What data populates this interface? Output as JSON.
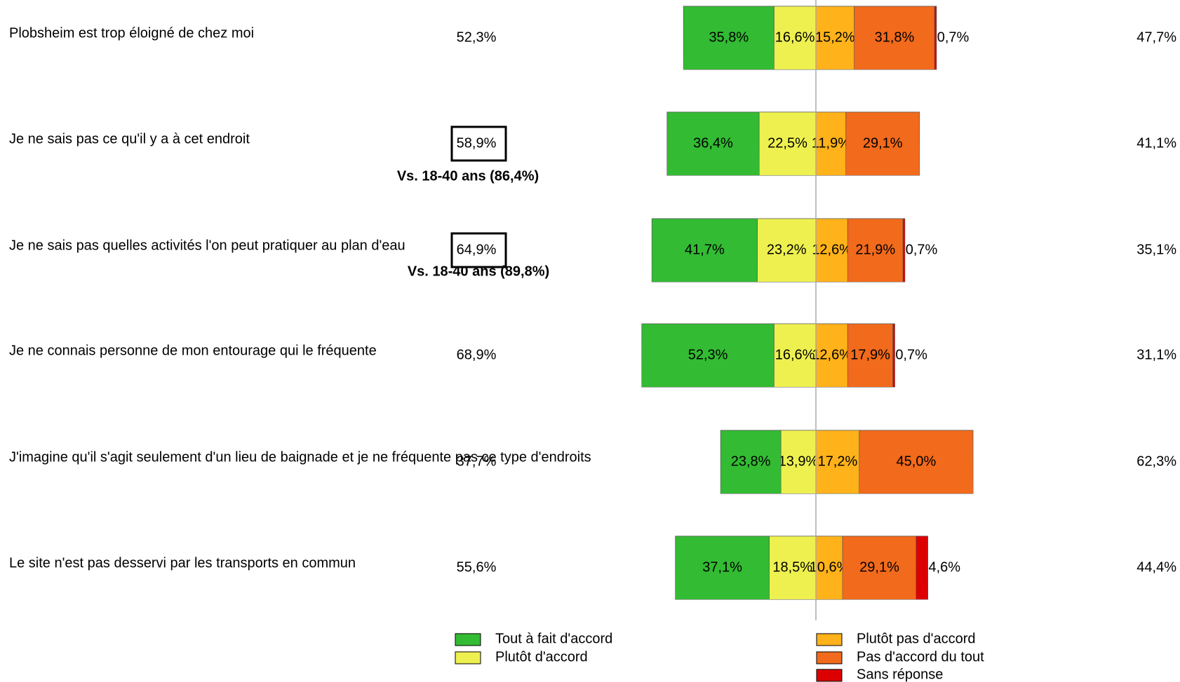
{
  "chart_data": {
    "type": "diverging-bar",
    "categories": [
      "Plobsheim est trop éloigné de chez moi",
      "Je ne sais pas ce qu'il y a à cet endroit",
      "Je ne sais pas quelles activités l'on peut pratiquer au plan d'eau",
      "Je ne connais personne de mon entourage qui le fréquente",
      "J'imagine qu'il s'agit seulement d'un lieu de baignade et je ne fréquente pas ce type d'endroits",
      "Le site n'est pas desservi par les transports en commun"
    ],
    "agree_totals": {
      "values": [
        52.3,
        58.9,
        64.9,
        68.9,
        37.7,
        55.6
      ],
      "value_labels": [
        "52,3%",
        "58,9%",
        "64,9%",
        "68,9%",
        "37,7%",
        "55,6%"
      ],
      "boxed": [
        false,
        true,
        true,
        false,
        false,
        false
      ]
    },
    "notes": [
      null,
      "Vs. 18-40 ans (86,4%)",
      "Vs. 18-40 ans (89,8%)",
      null,
      null,
      null
    ],
    "disagree_totals": {
      "values": [
        47.7,
        41.1,
        35.1,
        31.1,
        62.3,
        44.4
      ],
      "value_labels": [
        "47,7%",
        "41,1%",
        "35,1%",
        "31,1%",
        "62,3%",
        "44,4%"
      ]
    },
    "series": [
      {
        "name": "Tout à fait d'accord",
        "color": "#33bb33",
        "side": "left",
        "values": [
          35.8,
          36.4,
          41.7,
          52.3,
          23.8,
          37.1
        ],
        "value_labels": [
          "35,8%",
          "36,4%",
          "41,7%",
          "52,3%",
          "23,8%",
          "37,1%"
        ]
      },
      {
        "name": "Plutôt d'accord",
        "color": "#eef050",
        "side": "left",
        "values": [
          16.6,
          22.5,
          23.2,
          16.6,
          13.9,
          18.5
        ],
        "value_labels": [
          "16,6%",
          "22,5%",
          "23,2%",
          "16,6%",
          "13,9%",
          "18,5%"
        ]
      },
      {
        "name": "Plutôt pas d'accord",
        "color": "#ffb21a",
        "side": "right",
        "values": [
          15.2,
          11.9,
          12.6,
          12.6,
          17.2,
          10.6
        ],
        "value_labels": [
          "15,2%",
          "11,9%",
          "12,6%",
          "12,6%",
          "17,2%",
          "10,6%"
        ]
      },
      {
        "name": "Pas d'accord du tout",
        "color": "#f26a1b",
        "side": "right",
        "values": [
          31.8,
          29.1,
          21.9,
          17.9,
          45.0,
          29.1
        ],
        "value_labels": [
          "31,8%",
          "29,1%",
          "21,9%",
          "17,9%",
          "45,0%",
          "29,1%"
        ]
      },
      {
        "name": "Sans réponse",
        "color": "#dd0000",
        "side": "right",
        "values": [
          0.7,
          null,
          0.7,
          0.7,
          null,
          4.6
        ],
        "value_labels": [
          "0,7%",
          null,
          "0,7%",
          "0,7%",
          null,
          "4,6%"
        ]
      }
    ]
  }
}
